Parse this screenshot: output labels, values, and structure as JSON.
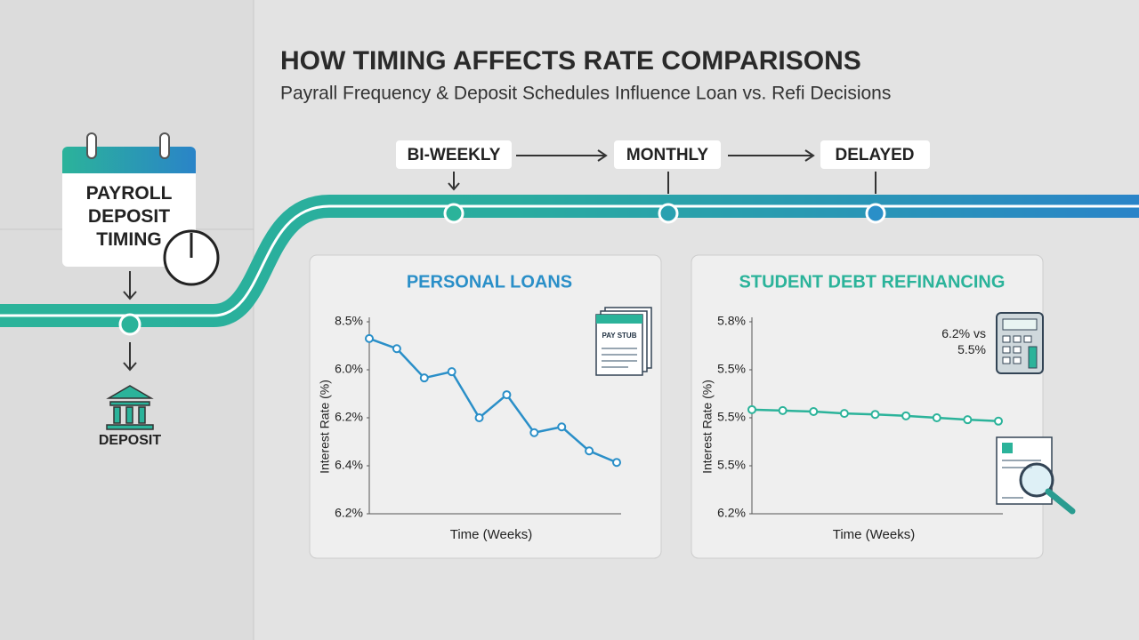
{
  "header": {
    "title": "HOW TIMING AFFECTS RATE COMPARISONS",
    "subtitle": "Payrall Frequency & Deposit Schedules Influence Loan vs. Refi Decisions"
  },
  "timeline": {
    "start_label": "PAYROLL DEPOSIT TIMING",
    "end_label": "DEPOSIT",
    "stages": [
      "BI-WEEKLY",
      "MONTHLY",
      "DELAYED"
    ]
  },
  "chart_data": [
    {
      "type": "line",
      "title": "PERSONAL LOANS",
      "y_label": "Interest Rate (%)",
      "x_label": "Time (Weeks)",
      "icon_label": "PAY STUB",
      "categories": [
        null,
        null,
        null,
        null,
        null,
        null,
        null,
        null,
        null,
        null
      ],
      "values": [
        3.65,
        3.44,
        2.83,
        2.96,
        2.0,
        2.48,
        1.69,
        1.81,
        1.31,
        1.07
      ],
      "color": "#2a8fc8",
      "ylim": [
        0,
        4
      ],
      "yticks": [
        {
          "value": 4,
          "label": "8.5%"
        },
        {
          "value": 3,
          "label": "6.0%"
        },
        {
          "value": 2,
          "label": "6.2%"
        },
        {
          "value": 1,
          "label": "6.4%"
        },
        {
          "value": 0,
          "label": "6.2%"
        }
      ]
    },
    {
      "type": "line",
      "title": "STUDENT DEBT REFINANCING",
      "y_label": "Interest Rate (%)",
      "x_label": "Time (Weeks)",
      "annotation": "6.2% vs 5.5%",
      "categories": [
        null,
        null,
        null,
        null,
        null,
        null,
        null,
        null,
        null
      ],
      "values": [
        2.17,
        2.15,
        2.13,
        2.09,
        2.07,
        2.04,
        2.0,
        1.96,
        1.93
      ],
      "color": "#2bb39a",
      "ylim": [
        0,
        4
      ],
      "yticks": [
        {
          "value": 4,
          "label": "5.8%"
        },
        {
          "value": 3,
          "label": "5.5%"
        },
        {
          "value": 2,
          "label": "5.5%"
        },
        {
          "value": 1,
          "label": "5.5%"
        },
        {
          "value": 0,
          "label": "6.2%"
        }
      ]
    }
  ]
}
